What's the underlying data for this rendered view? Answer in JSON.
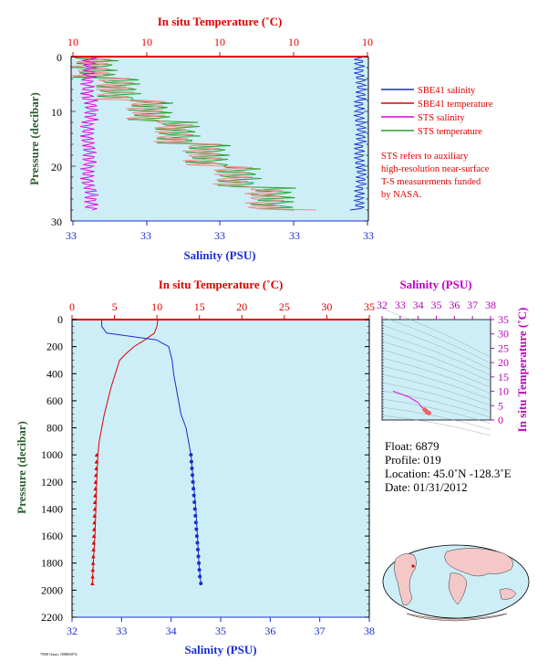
{
  "top_panel": {
    "x_top_label": "In situ Temperature (˚C)",
    "x_top_ticks": [
      "10",
      "10",
      "10",
      "10",
      "10"
    ],
    "x_bottom_label": "Salinity (PSU)",
    "x_bottom_ticks": [
      "33",
      "33",
      "33",
      "33",
      "33"
    ],
    "y_label": "Pressure (decibar)",
    "y_ticks": [
      "0",
      "10",
      "20",
      "30"
    ],
    "legend": [
      {
        "label": "SBE41 salinity",
        "color": "#1a2ecf"
      },
      {
        "label": "SBE41 temperature",
        "color": "#e00000"
      },
      {
        "label": "STS salinity",
        "color": "#e000e0"
      },
      {
        "label": "STS temperature",
        "color": "#28a028"
      }
    ],
    "note_lines": [
      "STS refers to auxiliary",
      "high-resolution near-surface",
      "T-S measurements funded",
      "by NASA."
    ]
  },
  "main_panel": {
    "x_top_label": "In situ Temperature (˚C)",
    "x_top_ticks": [
      "0",
      "5",
      "10",
      "15",
      "20",
      "25",
      "30",
      "35"
    ],
    "x_bottom_label": "Salinity (PSU)",
    "x_bottom_ticks": [
      "32",
      "33",
      "34",
      "35",
      "36",
      "37",
      "38"
    ],
    "y_label": "Pressure (decibar)",
    "y_ticks": [
      "0",
      "200",
      "400",
      "600",
      "800",
      "1000",
      "1200",
      "1400",
      "1600",
      "1800",
      "2000",
      "2200"
    ]
  },
  "ts_panel": {
    "x_label": "Salinity (PSU)",
    "x_ticks": [
      "32",
      "33",
      "34",
      "35",
      "36",
      "37",
      "38"
    ],
    "y_label": "In situ Temperature (˚C)",
    "y_ticks": [
      "0",
      "5",
      "10",
      "15",
      "20",
      "25",
      "30",
      "35"
    ]
  },
  "float_info": {
    "float": "Float:  6879",
    "profile": "Profile:  019",
    "location": "Location:  45.0˚N  -128.3˚E",
    "date": "Date:  01/31/2012"
  },
  "footer_text": "7900 Oasis. 00000074",
  "colors": {
    "plot_bg": "#cdeef6",
    "temperature": "#e00000",
    "salinity": "#1a2ecf",
    "axis_top": "#e00000",
    "axis_bottom": "#1a2ecf",
    "ts_axis": "#c000c0",
    "pressure_label": "#2e5f2e"
  },
  "chart_data": [
    {
      "type": "line",
      "title": "",
      "xlabel": "Salinity (PSU) / In situ Temperature (˚C)",
      "ylabel": "Pressure (decibar)",
      "ylim": [
        30,
        0
      ],
      "series": [
        {
          "name": "SBE41 salinity",
          "x": [
            33.4,
            33.4,
            33.4,
            33.4
          ],
          "y": [
            3,
            10,
            20,
            28
          ]
        },
        {
          "name": "SBE41 temperature",
          "x": [
            10.0,
            10.1,
            10.3,
            10.6
          ],
          "y": [
            0,
            10,
            20,
            28
          ]
        },
        {
          "name": "STS salinity",
          "x": [
            32.9,
            32.9,
            32.9,
            32.9
          ],
          "y": [
            0.5,
            10,
            20,
            28
          ]
        },
        {
          "name": "STS temperature",
          "x": [
            10.0,
            10.1,
            10.3,
            10.6
          ],
          "y": [
            0.5,
            10,
            20,
            28
          ]
        }
      ]
    },
    {
      "type": "line",
      "title": "",
      "xlabel": "Salinity (PSU)",
      "x2label": "In situ Temperature (˚C)",
      "ylabel": "Pressure (decibar)",
      "xlim": [
        32,
        38
      ],
      "x2lim": [
        0,
        35
      ],
      "ylim": [
        2200,
        0
      ],
      "series": [
        {
          "name": "Temperature",
          "axis": "top",
          "x": [
            10.1,
            10.0,
            9.7,
            8.6,
            7.3,
            6.4,
            5.6,
            5.1,
            4.6,
            4.2,
            3.8,
            3.5,
            3.2,
            3.05,
            2.9,
            2.8,
            2.7,
            2.6,
            2.5,
            2.4
          ],
          "y": [
            0,
            50,
            100,
            150,
            200,
            250,
            300,
            400,
            500,
            600,
            700,
            800,
            900,
            1000,
            1200,
            1400,
            1600,
            1700,
            1800,
            1950
          ]
        },
        {
          "name": "Salinity",
          "axis": "bottom",
          "x": [
            32.6,
            32.6,
            32.7,
            33.7,
            33.95,
            34.02,
            34.05,
            34.1,
            34.15,
            34.2,
            34.3,
            34.35,
            34.4,
            34.45,
            34.5,
            34.53,
            34.56,
            34.6
          ],
          "y": [
            0,
            50,
            100,
            150,
            200,
            300,
            400,
            500,
            600,
            700,
            800,
            900,
            1000,
            1200,
            1400,
            1600,
            1800,
            1950
          ]
        },
        {
          "name": "Temperature bottle points",
          "axis": "top",
          "x": [
            2.9,
            2.88,
            2.85,
            2.8,
            2.78,
            2.75,
            2.72,
            2.7,
            2.68,
            2.65,
            2.63,
            2.6,
            2.58,
            2.55,
            2.52,
            2.5,
            2.48,
            2.45,
            2.43,
            2.4
          ],
          "y": [
            1000,
            1050,
            1100,
            1150,
            1200,
            1250,
            1300,
            1350,
            1400,
            1450,
            1500,
            1550,
            1600,
            1650,
            1700,
            1750,
            1800,
            1850,
            1900,
            1950
          ]
        },
        {
          "name": "Salinity bottle points",
          "axis": "bottom",
          "x": [
            34.4,
            34.41,
            34.42,
            34.43,
            34.44,
            34.45,
            34.46,
            34.47,
            34.48,
            34.49,
            34.5,
            34.51,
            34.52,
            34.53,
            34.54,
            34.55,
            34.56,
            34.57,
            34.58,
            34.6
          ],
          "y": [
            1000,
            1050,
            1100,
            1150,
            1200,
            1250,
            1300,
            1350,
            1400,
            1450,
            1500,
            1550,
            1600,
            1650,
            1700,
            1750,
            1800,
            1850,
            1900,
            1950
          ]
        }
      ]
    },
    {
      "type": "scatter",
      "title": "",
      "xlabel": "Salinity (PSU)",
      "ylabel": "In situ Temperature (˚C)",
      "xlim": [
        32,
        38
      ],
      "ylim": [
        0,
        35
      ],
      "series": [
        {
          "name": "T-S",
          "x": [
            32.6,
            33.5,
            34.0,
            34.2,
            34.35,
            34.45,
            34.5,
            34.55,
            34.6
          ],
          "y": [
            10.1,
            8.0,
            6.0,
            4.5,
            3.6,
            3.0,
            2.7,
            2.55,
            2.4
          ]
        }
      ]
    }
  ]
}
